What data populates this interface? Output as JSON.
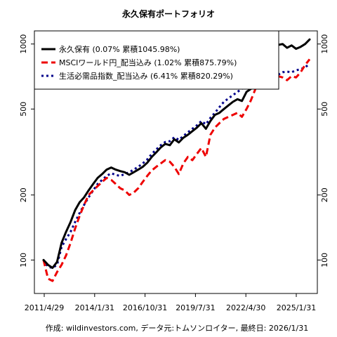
{
  "chart_data": {
    "type": "line",
    "title": "永久保有ポートフォリオ",
    "source": "作成: wildinvestors.com, データ元:トムソンロイター, 最終日: 2026/1/31",
    "xlabel": "",
    "ylabel": "",
    "y_scale": "log",
    "ylim": [
      70,
      1150
    ],
    "y_ticks": [
      100,
      200,
      500,
      1000
    ],
    "x_ticks": [
      "2011/4/29",
      "2014/1/31",
      "2016/10/31",
      "2019/7/31",
      "2022/4/30",
      "2025/1/31"
    ],
    "x": [
      "2011/4",
      "2011/7",
      "2011/10",
      "2012/1",
      "2012/4",
      "2012/7",
      "2012/10",
      "2013/1",
      "2013/4",
      "2013/7",
      "2013/10",
      "2014/1",
      "2014/4",
      "2014/7",
      "2014/10",
      "2015/1",
      "2015/4",
      "2015/7",
      "2015/10",
      "2016/1",
      "2016/4",
      "2016/7",
      "2016/10",
      "2017/1",
      "2017/4",
      "2017/7",
      "2017/10",
      "2018/1",
      "2018/4",
      "2018/7",
      "2018/10",
      "2019/1",
      "2019/4",
      "2019/7",
      "2019/10",
      "2020/1",
      "2020/4",
      "2020/7",
      "2020/10",
      "2021/1",
      "2021/4",
      "2021/7",
      "2021/10",
      "2022/1",
      "2022/4",
      "2022/7",
      "2022/10",
      "2023/1",
      "2023/4",
      "2023/7",
      "2023/10",
      "2024/1",
      "2024/4",
      "2024/7",
      "2024/10",
      "2025/1",
      "2025/4",
      "2025/7",
      "2025/10",
      "2026/1"
    ],
    "series": [
      {
        "name": "永久保有 (0.07% 累積1045.98%)",
        "color": "#000000",
        "style": "solid",
        "values": [
          100,
          95,
          92,
          98,
          120,
          135,
          150,
          170,
          185,
          195,
          210,
          225,
          240,
          250,
          262,
          268,
          262,
          258,
          255,
          248,
          255,
          262,
          270,
          282,
          300,
          315,
          332,
          345,
          340,
          362,
          350,
          368,
          380,
          395,
          410,
          430,
          405,
          440,
          470,
          480,
          500,
          520,
          540,
          555,
          545,
          600,
          620,
          680,
          760,
          840,
          880,
          950,
          990,
          1000,
          960,
          985,
          950,
          970,
          1000,
          1050
        ]
      },
      {
        "name": "MSCIワールド円_配当込み (1.02% 累積875.79%)",
        "color": "#ee0000",
        "style": "dashed",
        "values": [
          100,
          82,
          80,
          88,
          95,
          105,
          120,
          140,
          160,
          180,
          200,
          210,
          220,
          230,
          240,
          235,
          225,
          215,
          210,
          200,
          205,
          215,
          230,
          245,
          260,
          270,
          280,
          290,
          285,
          270,
          250,
          280,
          300,
          290,
          310,
          330,
          300,
          380,
          410,
          430,
          450,
          460,
          470,
          480,
          460,
          500,
          550,
          620,
          640,
          660,
          680,
          690,
          710,
          700,
          680,
          710,
          700,
          740,
          800,
          850
        ]
      },
      {
        "name": "生活必需品指数_配当込み (6.41% 累積820.29%)",
        "color": "#00008b",
        "style": "dotted",
        "values": [
          100,
          93,
          92,
          95,
          115,
          125,
          135,
          150,
          165,
          180,
          195,
          210,
          225,
          235,
          245,
          252,
          248,
          245,
          250,
          255,
          262,
          270,
          280,
          292,
          310,
          325,
          340,
          352,
          355,
          370,
          360,
          375,
          390,
          405,
          420,
          440,
          425,
          455,
          480,
          510,
          540,
          560,
          580,
          600,
          620,
          640,
          650,
          665,
          680,
          690,
          700,
          710,
          720,
          740,
          745,
          740,
          755,
          765,
          780,
          810
        ]
      }
    ]
  }
}
